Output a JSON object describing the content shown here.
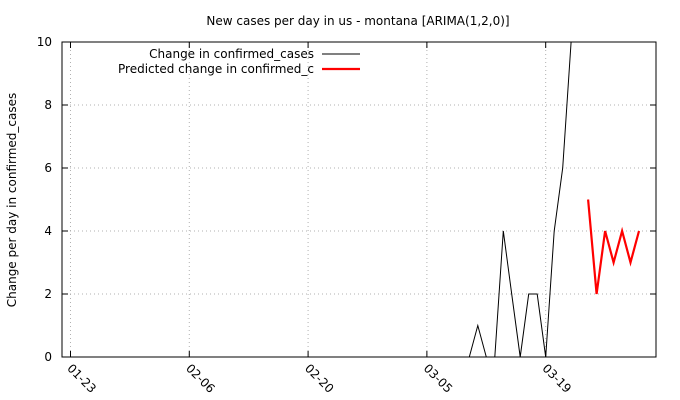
{
  "chart_data": {
    "type": "line",
    "title": "New cases per day in us - montana [ARIMA(1,2,0)]",
    "xlabel": "",
    "ylabel": "Change per day in confirmed_cases",
    "x_ticks": [
      "01-23",
      "02-06",
      "02-20",
      "03-05",
      "03-19"
    ],
    "y_ticks": [
      "0",
      "2",
      "4",
      "6",
      "8",
      "10"
    ],
    "xlim": [
      "01-22",
      "04-01"
    ],
    "ylim": [
      0,
      10
    ],
    "grid": true,
    "legend_position": "top-left",
    "series": [
      {
        "name": "Change in confirmed_cases",
        "color": "#000000",
        "x": [
          "03-10",
          "03-11",
          "03-12",
          "03-13",
          "03-14",
          "03-15",
          "03-16",
          "03-17",
          "03-18",
          "03-19",
          "03-20",
          "03-21",
          "03-22"
        ],
        "values": [
          0,
          1,
          0,
          0,
          4,
          2,
          0,
          2,
          2,
          0,
          4,
          6,
          10
        ]
      },
      {
        "name": "Predicted change in confirmed_c",
        "color": "#ff0000",
        "x": [
          "03-24",
          "03-25",
          "03-26",
          "03-27",
          "03-28",
          "03-29",
          "03-30"
        ],
        "values": [
          5,
          2,
          4,
          3,
          4,
          3,
          4
        ]
      }
    ]
  }
}
